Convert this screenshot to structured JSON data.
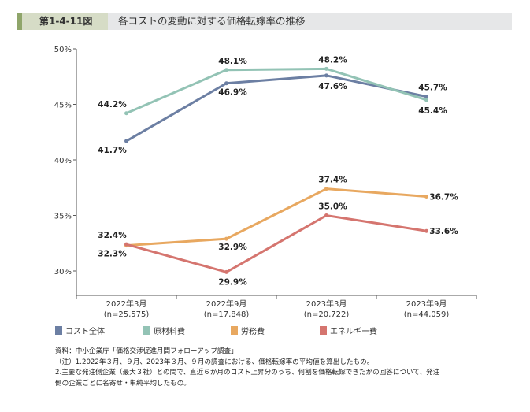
{
  "header": {
    "figure_no": "第1-4-11図",
    "title": "各コストの変動に対する価格転嫁率の推移"
  },
  "chart_data": {
    "type": "line",
    "categories": [
      "2022年3月",
      "2022年9月",
      "2023年3月",
      "2023年9月"
    ],
    "category_sub": [
      "(n=25,575)",
      "(n=17,848)",
      "(n=20,722)",
      "(n=44,059)"
    ],
    "ylim": [
      30,
      50
    ],
    "yticks": [
      "30%",
      "35%",
      "40%",
      "45%",
      "50%"
    ],
    "grid": false,
    "legend_position": "bottom",
    "series": [
      {
        "name": "コスト全体",
        "color": "#6c7fa3",
        "values": [
          41.7,
          46.9,
          47.6,
          45.7
        ],
        "labels": [
          "41.7%",
          "46.9%",
          "47.6%",
          "45.7%"
        ]
      },
      {
        "name": "原材料費",
        "color": "#93c3b5",
        "values": [
          44.2,
          48.1,
          48.2,
          45.4
        ],
        "labels": [
          "44.2%",
          "48.1%",
          "48.2%",
          "45.4%"
        ]
      },
      {
        "name": "労務費",
        "color": "#e8a860",
        "values": [
          32.3,
          32.9,
          37.4,
          36.7
        ],
        "labels": [
          "32.3%",
          "32.9%",
          "37.4%",
          "36.7%"
        ]
      },
      {
        "name": "エネルギー費",
        "color": "#d5756f",
        "values": [
          32.4,
          29.9,
          35.0,
          33.6
        ],
        "labels": [
          "32.4%",
          "29.9%",
          "35.0%",
          "33.6%"
        ]
      }
    ]
  },
  "notes": [
    "資料：中小企業庁「価格交渉促進月間フォローアップ調査」",
    "（注）1.2022年３月、９月、2023年３月、９月の調査における、価格転嫁率の平均値を算出したもの。",
    "2.主要な発注側企業（最大３社）との間で、直近６か月のコスト上昇分のうち、何割を価格転嫁できたかの回答について、発注",
    "側の企業ごとに名寄せ・単純平均したもの。"
  ]
}
